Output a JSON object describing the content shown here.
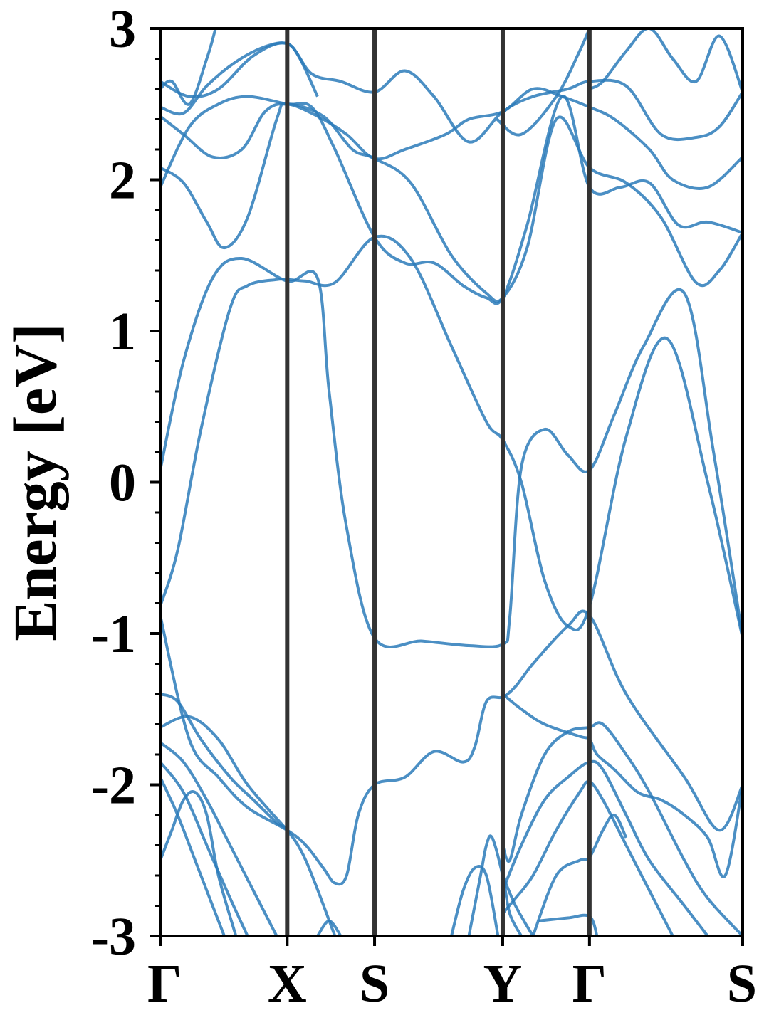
{
  "chart_data": {
    "type": "line",
    "title": "",
    "xlabel": "",
    "ylabel": "Energy [eV]",
    "ylim": [
      -3,
      3
    ],
    "y_ticks": [
      "3",
      "2",
      "1",
      "0",
      "-1",
      "-2",
      "-3"
    ],
    "y_tick_values": [
      3,
      2,
      1,
      0,
      -1,
      -2,
      -3
    ],
    "y_minor_step": 0.2,
    "kpath": [
      {
        "label": "Γ",
        "k": 0
      },
      {
        "label": "X",
        "k": 0.218
      },
      {
        "label": "S",
        "k": 0.368
      },
      {
        "label": "Y",
        "k": 0.588
      },
      {
        "label": "Γ",
        "k": 0.737
      },
      {
        "label": "S",
        "k": 1.0
      }
    ],
    "xlim": [
      0,
      1
    ],
    "grid": false,
    "line_color": "#2b7bba",
    "kpoint_line_color": "#333333",
    "series": [
      {
        "x": [
          0,
          0.03,
          0.07,
          0.12,
          0.15,
          0.2,
          0.218,
          0.25,
          0.3,
          0.368,
          0.43,
          0.5,
          0.56,
          0.588,
          0.62,
          0.66,
          0.7,
          0.737,
          0.8,
          0.87,
          0.94,
          1.0
        ],
        "y": [
          -0.82,
          -0.45,
          0.35,
          1.15,
          1.3,
          1.34,
          1.34,
          1.33,
          1.32,
          1.62,
          1.48,
          0.9,
          0.4,
          0.28,
          0.0,
          -0.65,
          -0.95,
          -0.82,
          0.3,
          0.95,
          0.0,
          -1.03
        ]
      },
      {
        "x": [
          0,
          0.04,
          0.09,
          0.14,
          0.218,
          0.27,
          0.29,
          0.32,
          0.368,
          0.45,
          0.53,
          0.588,
          0.6,
          0.62,
          0.66,
          0.7,
          0.737,
          0.78,
          0.83,
          0.9,
          0.95,
          1.0
        ],
        "y": [
          0.08,
          0.8,
          1.35,
          1.48,
          1.33,
          1.35,
          0.6,
          -0.3,
          -1.03,
          -1.05,
          -1.08,
          -1.07,
          -0.9,
          0.1,
          0.35,
          0.18,
          0.08,
          0.45,
          0.9,
          1.25,
          0.2,
          -1.03
        ]
      },
      {
        "x": [
          0,
          0.04,
          0.08,
          0.11,
          0.15,
          0.2,
          0.218,
          0.28,
          0.33,
          0.368,
          0.43,
          0.5,
          0.56,
          0.588,
          0.63,
          0.68,
          0.737,
          0.8,
          0.86,
          0.92,
          0.96,
          1.0
        ],
        "y": [
          2.08,
          1.98,
          1.72,
          1.55,
          1.75,
          2.4,
          2.5,
          2.42,
          2.2,
          2.14,
          1.98,
          1.5,
          1.25,
          1.22,
          1.55,
          2.4,
          2.08,
          1.98,
          1.75,
          1.32,
          1.4,
          1.65
        ]
      },
      {
        "x": [
          0,
          0.05,
          0.1,
          0.15,
          0.218,
          0.26,
          0.3,
          0.368,
          0.42,
          0.47,
          0.52,
          0.56,
          0.588,
          0.63,
          0.69,
          0.737,
          0.79,
          0.84,
          0.89,
          0.94,
          1.0
        ],
        "y": [
          1.95,
          2.35,
          2.5,
          2.55,
          2.5,
          2.48,
          2.2,
          1.62,
          1.45,
          1.45,
          1.3,
          1.22,
          1.22,
          1.7,
          2.55,
          1.95,
          1.95,
          1.98,
          1.7,
          1.72,
          1.65
        ]
      },
      {
        "x": [
          0,
          0.04,
          0.09,
          0.14,
          0.18,
          0.218,
          0.27,
          0.32,
          0.368,
          0.42,
          0.49,
          0.53,
          0.588,
          0.64,
          0.69,
          0.737,
          0.78,
          0.84,
          0.88,
          0.94,
          1.0
        ],
        "y": [
          2.42,
          2.3,
          2.15,
          2.2,
          2.45,
          2.5,
          2.42,
          2.3,
          2.14,
          2.2,
          2.3,
          2.4,
          2.45,
          2.6,
          2.55,
          2.48,
          2.4,
          2.2,
          2.0,
          1.95,
          2.15
        ]
      },
      {
        "x": [
          0,
          0.05,
          0.1,
          0.16,
          0.218,
          0.26,
          0.31,
          0.368,
          0.42,
          0.47,
          0.53,
          0.588,
          0.64,
          0.7,
          0.737,
          0.8,
          0.86,
          0.92,
          0.96,
          1.0
        ],
        "y": [
          2.65,
          2.55,
          2.6,
          2.82,
          2.9,
          2.7,
          2.65,
          2.58,
          2.72,
          2.55,
          2.25,
          2.45,
          2.55,
          2.6,
          2.65,
          2.62,
          2.3,
          2.28,
          2.35,
          2.58
        ]
      },
      {
        "x": [
          0,
          0.04,
          0.08,
          0.13,
          0.18,
          0.218,
          0.24,
          0.27
        ],
        "y": [
          2.48,
          2.44,
          2.62,
          2.78,
          2.88,
          2.9,
          2.8,
          2.55
        ]
      },
      {
        "x": [
          0,
          0.02,
          0.05,
          0.08,
          0.095
        ],
        "y": [
          2.6,
          2.65,
          2.5,
          2.8,
          3.0
        ]
      },
      {
        "x": [
          0.737,
          0.76,
          0.8,
          0.84,
          0.88,
          0.92,
          0.96,
          1.0
        ],
        "y": [
          2.6,
          2.65,
          2.85,
          3.0,
          2.8,
          2.65,
          2.95,
          2.58
        ]
      },
      {
        "x": [
          0.578,
          0.62,
          0.68,
          0.72,
          0.737
        ],
        "y": [
          2.4,
          2.3,
          2.55,
          2.85,
          3.0
        ]
      },
      {
        "x": [
          0.588,
          0.62,
          0.66,
          0.72,
          0.737,
          0.75,
          0.78,
          0.82,
          0.86,
          0.9,
          0.94,
          0.97,
          1.0
        ],
        "y": [
          -1.4,
          -1.5,
          -1.6,
          -1.68,
          -1.7,
          -1.8,
          -1.9,
          -2.05,
          -2.1,
          -2.2,
          -2.35,
          -2.6,
          -2.0
        ]
      },
      {
        "x": [
          0,
          0.05,
          0.1,
          0.15,
          0.218,
          0.25,
          0.28,
          0.3,
          0.32,
          0.34,
          0.368,
          0.42,
          0.47,
          0.52,
          0.54,
          0.56,
          0.588,
          0.61,
          0.64,
          0.7,
          0.737,
          0.8,
          0.9,
          0.96,
          1.0
        ],
        "y": [
          -0.88,
          -1.7,
          -1.95,
          -2.15,
          -2.3,
          -2.4,
          -2.55,
          -2.65,
          -2.6,
          -2.2,
          -2.0,
          -1.95,
          -1.78,
          -1.85,
          -1.75,
          -1.45,
          -1.42,
          -1.35,
          -1.2,
          -0.95,
          -0.88,
          -1.4,
          -1.95,
          -2.3,
          -2.0
        ]
      },
      {
        "x": [
          0,
          0.03,
          0.07,
          0.12,
          0.16,
          0.2,
          0.218,
          0.25,
          0.3
        ],
        "y": [
          -1.4,
          -1.45,
          -1.7,
          -1.95,
          -2.1,
          -2.25,
          -2.3,
          -2.5,
          -3.0
        ]
      },
      {
        "x": [
          0,
          0.05,
          0.1,
          0.15,
          0.218
        ],
        "y": [
          -1.62,
          -1.55,
          -1.7,
          -2.0,
          -2.3
        ]
      },
      {
        "x": [
          0,
          0.04,
          0.08,
          0.12,
          0.16,
          0.2
        ],
        "y": [
          -1.72,
          -1.85,
          -2.1,
          -2.4,
          -2.7,
          -3.0
        ]
      },
      {
        "x": [
          0,
          0.04,
          0.08,
          0.12,
          0.15
        ],
        "y": [
          -1.85,
          -2.05,
          -2.4,
          -2.75,
          -3.0
        ]
      },
      {
        "x": [
          0,
          0.03,
          0.06,
          0.09,
          0.11
        ],
        "y": [
          -1.95,
          -2.2,
          -2.5,
          -2.8,
          -3.0
        ]
      },
      {
        "x": [
          0,
          0.02,
          0.04,
          0.06,
          0.08,
          0.1,
          0.13
        ],
        "y": [
          -2.5,
          -2.3,
          -2.1,
          -2.05,
          -2.2,
          -2.6,
          -3.0
        ]
      },
      {
        "x": [
          0.588,
          0.6,
          0.62,
          0.66,
          0.7,
          0.737,
          0.76,
          0.8,
          0.84,
          0.9,
          0.94,
          1.0
        ],
        "y": [
          -2.4,
          -2.5,
          -2.2,
          -1.8,
          -1.65,
          -1.62,
          -1.6,
          -1.8,
          -2.05,
          -2.5,
          -2.75,
          -3.0
        ]
      },
      {
        "x": [
          0.588,
          0.62,
          0.66,
          0.7,
          0.737,
          0.76,
          0.8,
          0.84,
          0.9,
          0.94
        ],
        "y": [
          -2.7,
          -2.4,
          -2.1,
          -1.95,
          -1.85,
          -1.9,
          -2.2,
          -2.5,
          -2.8,
          -3.0
        ]
      },
      {
        "x": [
          0.588,
          0.61,
          0.64,
          0.68,
          0.72,
          0.737,
          0.76,
          0.8,
          0.84,
          0.88
        ],
        "y": [
          -2.85,
          -2.75,
          -2.6,
          -2.3,
          -2.05,
          -1.98,
          -2.1,
          -2.4,
          -2.7,
          -3.0
        ]
      },
      {
        "x": [
          0.53,
          0.55,
          0.56,
          0.57,
          0.588,
          0.6,
          0.62
        ],
        "y": [
          -3.0,
          -2.6,
          -2.4,
          -2.35,
          -2.6,
          -2.85,
          -3.0
        ]
      },
      {
        "x": [
          0.5,
          0.52,
          0.54,
          0.56,
          0.58
        ],
        "y": [
          -3.0,
          -2.7,
          -2.55,
          -2.6,
          -3.0
        ]
      },
      {
        "x": [
          0.64,
          0.68,
          0.72,
          0.737,
          0.76,
          0.78,
          0.8
        ],
        "y": [
          -3.0,
          -2.6,
          -2.5,
          -2.48,
          -2.3,
          -2.2,
          -2.35
        ]
      },
      {
        "x": [
          0.65,
          0.7,
          0.737,
          0.75
        ],
        "y": [
          -2.9,
          -2.88,
          -2.87,
          -3.0
        ]
      },
      {
        "x": [
          0.588,
          0.61,
          0.64
        ],
        "y": [
          -2.6,
          -2.8,
          -3.0
        ]
      },
      {
        "x": [
          0.27,
          0.29,
          0.31
        ],
        "y": [
          -3.0,
          -2.9,
          -3.0
        ]
      }
    ]
  }
}
